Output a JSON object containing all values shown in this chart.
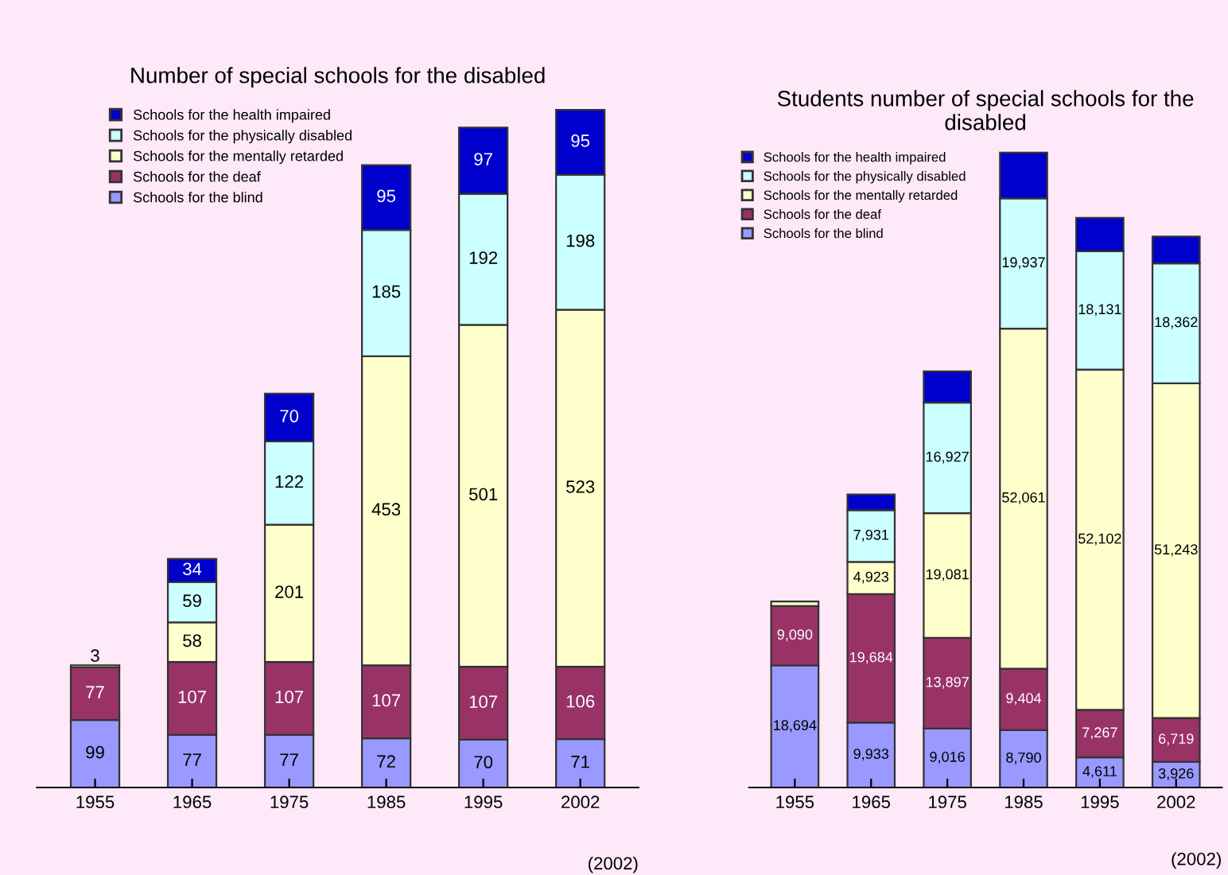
{
  "chart_data": [
    {
      "type": "bar",
      "stacked": true,
      "title": "Number of special schools for the disabled",
      "categories": [
        "1955",
        "1965",
        "1975",
        "1985",
        "1995",
        "2002"
      ],
      "legend": "top left",
      "annotations": [
        "(2002)"
      ],
      "series": [
        {
          "name": "Schools for the blind",
          "color": "#9999ff",
          "values": [
            99,
            77,
            77,
            72,
            70,
            71
          ],
          "value_labels": [
            "99",
            "77",
            "77",
            "72",
            "70",
            "71"
          ]
        },
        {
          "name": "Schools for the deaf",
          "color": "#993366",
          "values": [
            77,
            107,
            107,
            107,
            107,
            106
          ],
          "value_labels": [
            "77",
            "107",
            "107",
            "107",
            "107",
            "106"
          ]
        },
        {
          "name": "Schools for the mentally retarded",
          "color": "#ffffcc",
          "values": [
            3,
            58,
            201,
            453,
            501,
            523
          ],
          "value_labels": [
            "3",
            "58",
            "201",
            "453",
            "501",
            "523"
          ]
        },
        {
          "name": "Schools for the physically disabled",
          "color": "#ccffff",
          "values": [
            null,
            59,
            122,
            185,
            192,
            198
          ],
          "value_labels": [
            null,
            "59",
            "122",
            "185",
            "192",
            "198"
          ]
        },
        {
          "name": "Schools for the health impaired",
          "color": "#0000cc",
          "values": [
            null,
            34,
            70,
            95,
            97,
            95
          ],
          "value_labels": [
            null,
            "34",
            "70",
            "95",
            "97",
            "95"
          ]
        }
      ]
    },
    {
      "type": "bar",
      "stacked": true,
      "title": "Students number of special schools for the disabled",
      "categories": [
        "1955",
        "1965",
        "1975",
        "1985",
        "1995",
        "2002"
      ],
      "legend": "top left",
      "annotations": [
        "(2002)"
      ],
      "series": [
        {
          "name": "Schools for the blind",
          "color": "#9999ff",
          "values": [
            18694,
            9933,
            9016,
            8790,
            4611,
            3926
          ],
          "value_labels": [
            "18,694",
            "9,933",
            "9,016",
            "8,790",
            "4,611",
            "3,926"
          ]
        },
        {
          "name": "Schools for the deaf",
          "color": "#993366",
          "values": [
            9090,
            19684,
            13897,
            9404,
            7267,
            6719
          ],
          "value_labels": [
            "9,090",
            "19,684",
            "13,897",
            "9,404",
            "7,267",
            "6,719"
          ]
        },
        {
          "name": "Schools for the mentally retarded",
          "color": "#ffffcc",
          "values": [
            700,
            4923,
            19081,
            52061,
            52102,
            51243
          ],
          "value_labels": [
            null,
            "4,923",
            "19,081",
            "52,061",
            "52,102",
            "51,243"
          ]
        },
        {
          "name": "Schools for the physically disabled",
          "color": "#ccffff",
          "values": [
            null,
            7931,
            16927,
            19937,
            18131,
            18362
          ],
          "value_labels": [
            null,
            "7,931",
            "16,927",
            "19,937",
            "18,131",
            "18,362"
          ]
        },
        {
          "name": "Schools for the health impaired",
          "color": "#0000cc",
          "values": [
            null,
            2400,
            4800,
            7000,
            5100,
            4100
          ],
          "value_labels": [
            null,
            null,
            null,
            null,
            null,
            null
          ]
        }
      ]
    }
  ]
}
